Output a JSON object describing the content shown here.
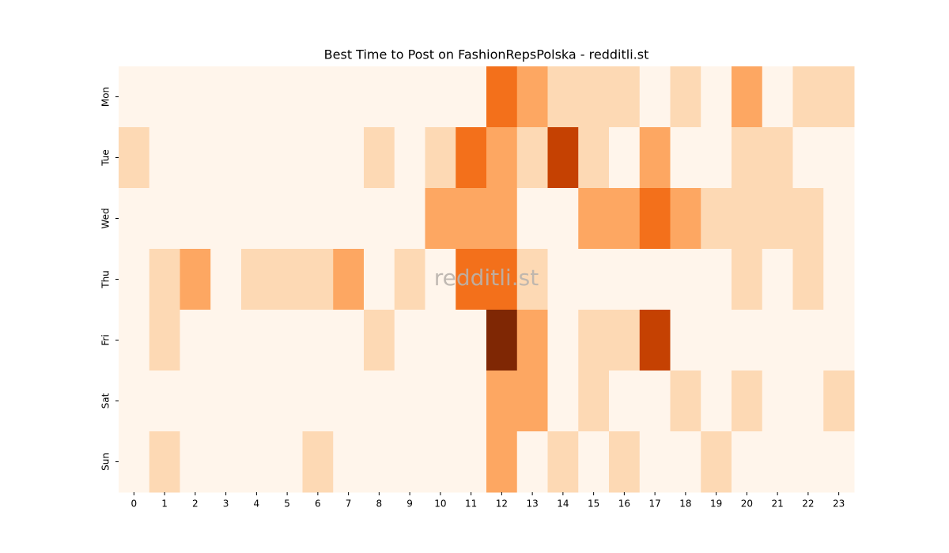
{
  "chart_data": {
    "type": "heatmap",
    "title": "Best Time to Post on FashionRepsPolska - redditli.st",
    "watermark": "redditli.st",
    "x": [
      0,
      1,
      2,
      3,
      4,
      5,
      6,
      7,
      8,
      9,
      10,
      11,
      12,
      13,
      14,
      15,
      16,
      17,
      18,
      19,
      20,
      21,
      22,
      23
    ],
    "y": [
      "Mon",
      "Tue",
      "Wed",
      "Thu",
      "Fri",
      "Sat",
      "Sun"
    ],
    "cmap": "Oranges",
    "vlim": [
      0,
      5
    ],
    "values": [
      [
        0,
        0,
        0,
        0,
        0,
        0,
        0,
        0,
        0,
        0,
        0,
        0,
        3,
        2,
        1,
        1,
        1,
        0,
        1,
        0,
        2,
        0,
        1,
        1
      ],
      [
        1,
        0,
        0,
        0,
        0,
        0,
        0,
        0,
        1,
        0,
        1,
        3,
        2,
        1,
        4,
        1,
        0,
        2,
        0,
        0,
        1,
        1,
        0,
        0
      ],
      [
        0,
        0,
        0,
        0,
        0,
        0,
        0,
        0,
        0,
        0,
        2,
        2,
        2,
        0,
        0,
        2,
        2,
        3,
        2,
        1,
        1,
        1,
        1,
        0
      ],
      [
        0,
        1,
        2,
        0,
        1,
        1,
        1,
        2,
        0,
        1,
        0,
        3,
        3,
        1,
        0,
        0,
        0,
        0,
        0,
        0,
        1,
        0,
        1,
        0
      ],
      [
        0,
        1,
        0,
        0,
        0,
        0,
        0,
        0,
        1,
        0,
        0,
        0,
        5,
        2,
        0,
        1,
        1,
        4,
        0,
        0,
        0,
        0,
        0,
        0
      ],
      [
        0,
        0,
        0,
        0,
        0,
        0,
        0,
        0,
        0,
        0,
        0,
        0,
        2,
        2,
        0,
        1,
        0,
        0,
        1,
        0,
        1,
        0,
        0,
        1
      ],
      [
        0,
        1,
        0,
        0,
        0,
        0,
        1,
        0,
        0,
        0,
        0,
        0,
        2,
        0,
        1,
        0,
        1,
        0,
        0,
        1,
        0,
        0,
        0,
        0
      ]
    ]
  }
}
